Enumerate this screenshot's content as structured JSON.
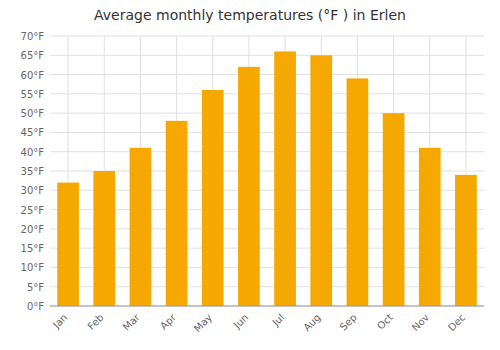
{
  "chart_data": {
    "type": "bar",
    "title": "Average monthly temperatures (°F ) in Erlen",
    "categories": [
      "Jan",
      "Feb",
      "Mar",
      "Apr",
      "May",
      "Jun",
      "Jul",
      "Aug",
      "Sep",
      "Oct",
      "Nov",
      "Dec"
    ],
    "values": [
      32,
      35,
      41,
      48,
      56,
      62,
      66,
      65,
      59,
      50,
      41,
      34
    ],
    "color": "#F5A800",
    "ylim": [
      0,
      70
    ],
    "yticks": [
      {
        "value": 0,
        "label": "0°F"
      },
      {
        "value": 5,
        "label": "5°F"
      },
      {
        "value": 10,
        "label": "10°F"
      },
      {
        "value": 15,
        "label": "15°F"
      },
      {
        "value": 20,
        "label": "20°F"
      },
      {
        "value": 25,
        "label": "25°F"
      },
      {
        "value": 30,
        "label": "30°F"
      },
      {
        "value": 35,
        "label": "35°F"
      },
      {
        "value": 40,
        "label": "40°F"
      },
      {
        "value": 45,
        "label": "45°F"
      },
      {
        "value": 50,
        "label": "50°F"
      },
      {
        "value": 55,
        "label": "55°F"
      },
      {
        "value": 60,
        "label": "60°F"
      },
      {
        "value": 65,
        "label": "65°F"
      },
      {
        "value": 70,
        "label": "70°F"
      }
    ],
    "grid": true
  }
}
